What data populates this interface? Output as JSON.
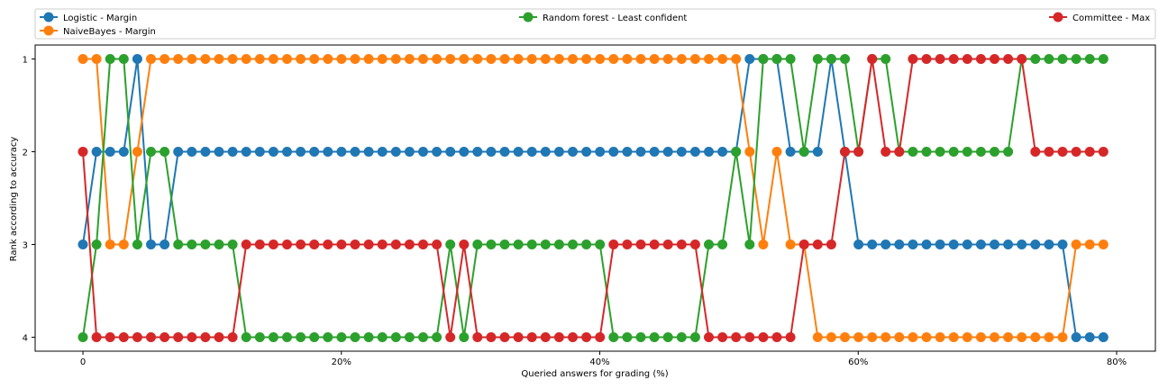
{
  "chart_data": {
    "type": "line",
    "xlabel": "Queried answers for grading (%)",
    "ylabel": "Rank according to accuracy",
    "xlim": [
      -3.7,
      83.0
    ],
    "ylim": [
      4.15,
      0.85
    ],
    "x_ticks": [
      {
        "value": 0,
        "label": "0"
      },
      {
        "value": 20,
        "label": "20%"
      },
      {
        "value": 40,
        "label": "40%"
      },
      {
        "value": 60,
        "label": "60%"
      },
      {
        "value": 80,
        "label": "80%"
      }
    ],
    "y_ticks": [
      {
        "value": 1,
        "label": "1"
      },
      {
        "value": 2,
        "label": "2"
      },
      {
        "value": 3,
        "label": "3"
      },
      {
        "value": 4,
        "label": "4"
      }
    ],
    "grid": false,
    "legend_position": "top",
    "x_start": 0,
    "x_step": 1.053,
    "series": [
      {
        "name": "Logistic - Margin",
        "color": "#1f77b4",
        "values": [
          3,
          2,
          2,
          2,
          1,
          3,
          3,
          2,
          2,
          2,
          2,
          2,
          2,
          2,
          2,
          2,
          2,
          2,
          2,
          2,
          2,
          2,
          2,
          2,
          2,
          2,
          2,
          2,
          2,
          2,
          2,
          2,
          2,
          2,
          2,
          2,
          2,
          2,
          2,
          2,
          2,
          2,
          2,
          2,
          2,
          2,
          2,
          2,
          2,
          1,
          1,
          1,
          2,
          2,
          2,
          1,
          2,
          3,
          3,
          3,
          3,
          3,
          3,
          3,
          3,
          3,
          3,
          3,
          3,
          3,
          3,
          3,
          3,
          4,
          4,
          4
        ]
      },
      {
        "name": "NaiveBayes - Margin",
        "color": "#ff7f0e",
        "values": [
          1,
          1,
          3,
          3,
          2,
          1,
          1,
          1,
          1,
          1,
          1,
          1,
          1,
          1,
          1,
          1,
          1,
          1,
          1,
          1,
          1,
          1,
          1,
          1,
          1,
          1,
          1,
          1,
          1,
          1,
          1,
          1,
          1,
          1,
          1,
          1,
          1,
          1,
          1,
          1,
          1,
          1,
          1,
          1,
          1,
          1,
          1,
          1,
          1,
          2,
          3,
          2,
          3,
          3,
          4,
          4,
          4,
          4,
          4,
          4,
          4,
          4,
          4,
          4,
          4,
          4,
          4,
          4,
          4,
          4,
          4,
          4,
          4,
          3,
          3,
          3
        ]
      },
      {
        "name": "Random forest - Least confident",
        "color": "#2ca02c",
        "values": [
          4,
          3,
          1,
          1,
          3,
          2,
          2,
          3,
          3,
          3,
          3,
          3,
          4,
          4,
          4,
          4,
          4,
          4,
          4,
          4,
          4,
          4,
          4,
          4,
          4,
          4,
          4,
          3,
          4,
          3,
          3,
          3,
          3,
          3,
          3,
          3,
          3,
          3,
          3,
          4,
          4,
          4,
          4,
          4,
          4,
          4,
          3,
          3,
          2,
          3,
          1,
          1,
          1,
          2,
          1,
          1,
          1,
          2,
          1,
          1,
          2,
          2,
          2,
          2,
          2,
          2,
          2,
          2,
          2,
          1,
          1,
          1,
          1,
          1,
          1,
          1
        ]
      },
      {
        "name": "Committee - Max",
        "color": "#d62728",
        "values": [
          2,
          4,
          4,
          4,
          4,
          4,
          4,
          4,
          4,
          4,
          4,
          4,
          3,
          3,
          3,
          3,
          3,
          3,
          3,
          3,
          3,
          3,
          3,
          3,
          3,
          3,
          3,
          4,
          3,
          4,
          4,
          4,
          4,
          4,
          4,
          4,
          4,
          4,
          4,
          3,
          3,
          3,
          3,
          3,
          3,
          3,
          4,
          4,
          4,
          4,
          4,
          4,
          4,
          3,
          3,
          3,
          2,
          2,
          1,
          2,
          2,
          1,
          1,
          1,
          1,
          1,
          1,
          1,
          1,
          1,
          2,
          2,
          2,
          2,
          2,
          2
        ]
      }
    ]
  }
}
